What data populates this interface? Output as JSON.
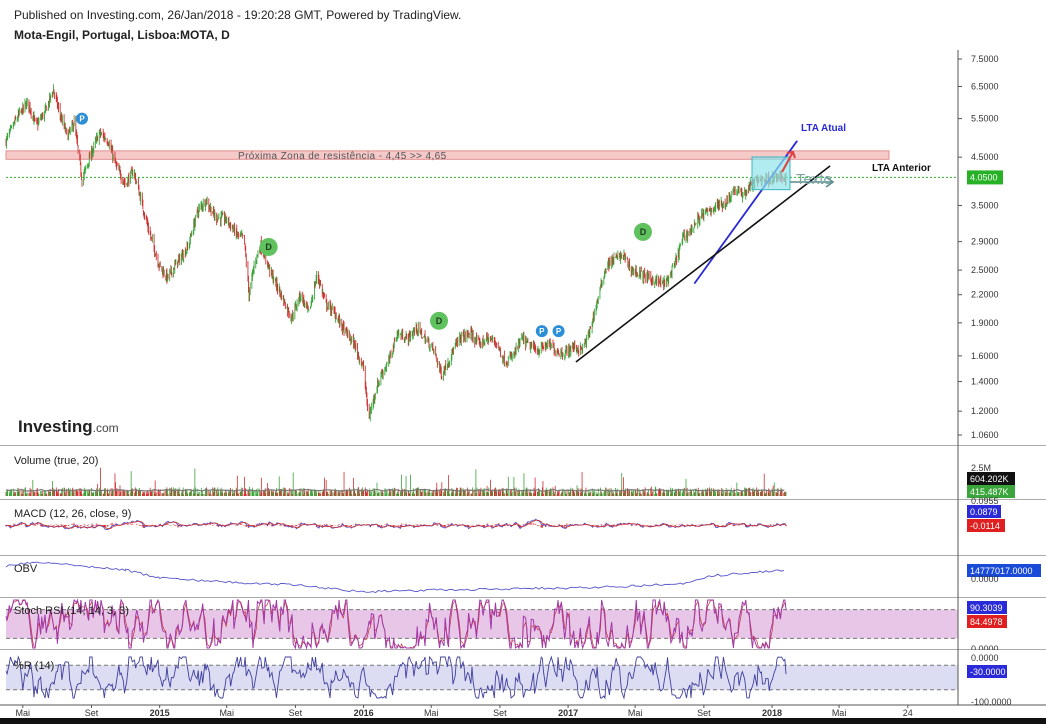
{
  "header": {
    "published": "Published on Investing.com, 26/Jan/2018 - 19:20:28 GMT, Powered by TradingView.",
    "symbol": "Mota-Engil, Portugal, Lisboa:MOTA, D"
  },
  "logo": {
    "brand": "Investing",
    "suffix": ".com"
  },
  "colors": {
    "up": "#3aa53a",
    "down": "#d03030",
    "resistance": "#f6c9c9",
    "price_line": "#27b127",
    "lta_atual": "#2a2ad8",
    "lta_anterior": "#111111",
    "macd": "#4a4ad0",
    "signal": "#cc3030",
    "obv": "#5555cc",
    "stoch_k": "#a23aa8",
    "stoch_d": "#cc3030",
    "stoch_band": "#e8c6e8",
    "wr": "#4040a0",
    "wr_band": "#dcdcf2",
    "marker_blue": "#2a8fd6",
    "marker_green": "#5fc25f"
  },
  "chart_data": [
    {
      "type": "candlestick",
      "name": "price",
      "y_scale": "log",
      "y_ticks": [
        "7.5000",
        "6.5000",
        "5.5000",
        "4.5000",
        "3.5000",
        "2.9000",
        "2.5000",
        "2.2000",
        "1.9000",
        "1.6000",
        "1.4000",
        "1.2000",
        "1.0600"
      ],
      "y_tick_values": [
        7.5,
        6.5,
        5.5,
        4.5,
        3.5,
        2.9,
        2.5,
        2.2,
        1.9,
        1.6,
        1.4,
        1.2,
        1.06
      ],
      "ylim": [
        1.0,
        8.0
      ],
      "last_price": "4.0500",
      "last_value": 4.05,
      "resistance_zone": {
        "label": "Próxima Zona de resistência - 4,45 >> 4,65",
        "from": 4.45,
        "to": 4.65
      },
      "trendlines": [
        {
          "label": "LTA Atual",
          "from": [
            "2017-08",
            2.33
          ],
          "to": [
            "2018-02",
            4.9
          ]
        },
        {
          "label": "LTA Anterior",
          "from": [
            "2017-01",
            1.55
          ],
          "to": [
            "2018-04",
            4.3
          ]
        }
      ],
      "annotation_text": "Texto",
      "markers": [
        {
          "label": "P",
          "date": "2014-08",
          "value": 5.5
        },
        {
          "label": "D",
          "date": "2015-07",
          "value": 2.82
        },
        {
          "label": "D",
          "date": "2016-05",
          "value": 1.92
        },
        {
          "label": "P",
          "date": "2016-11",
          "value": 1.82
        },
        {
          "label": "P",
          "date": "2016-12",
          "value": 1.82
        },
        {
          "label": "D",
          "date": "2017-05",
          "value": 3.05
        }
      ],
      "path_points": [
        [
          "2014-04-01",
          4.9
        ],
        [
          "2014-04-20",
          5.5
        ],
        [
          "2014-05-10",
          6.0
        ],
        [
          "2014-05-25",
          5.3
        ],
        [
          "2014-06-10",
          5.7
        ],
        [
          "2014-06-25",
          6.4
        ],
        [
          "2014-07-05",
          5.7
        ],
        [
          "2014-07-20",
          5.0
        ],
        [
          "2014-08-01",
          5.4
        ],
        [
          "2014-08-15",
          4.0
        ],
        [
          "2014-09-01",
          4.6
        ],
        [
          "2014-09-15",
          5.1
        ],
        [
          "2014-10-01",
          4.9
        ],
        [
          "2014-10-15",
          4.3
        ],
        [
          "2014-11-01",
          3.9
        ],
        [
          "2014-11-15",
          4.2
        ],
        [
          "2014-12-01",
          3.5
        ],
        [
          "2014-12-15",
          3.0
        ],
        [
          "2015-01-01",
          2.55
        ],
        [
          "2015-01-15",
          2.4
        ],
        [
          "2015-02-01",
          2.6
        ],
        [
          "2015-02-20",
          2.8
        ],
        [
          "2015-03-10",
          3.4
        ],
        [
          "2015-03-25",
          3.6
        ],
        [
          "2015-04-10",
          3.3
        ],
        [
          "2015-05-01",
          3.25
        ],
        [
          "2015-05-20",
          3.0
        ],
        [
          "2015-06-01",
          2.95
        ],
        [
          "2015-06-10",
          2.2
        ],
        [
          "2015-06-20",
          2.6
        ],
        [
          "2015-07-01",
          2.85
        ],
        [
          "2015-07-20",
          2.45
        ],
        [
          "2015-08-10",
          2.15
        ],
        [
          "2015-08-25",
          1.95
        ],
        [
          "2015-09-10",
          2.2
        ],
        [
          "2015-09-25",
          2.0
        ],
        [
          "2015-10-10",
          2.45
        ],
        [
          "2015-10-25",
          2.1
        ],
        [
          "2015-11-10",
          2.0
        ],
        [
          "2015-11-25",
          1.85
        ],
        [
          "2015-12-15",
          1.7
        ],
        [
          "2016-01-01",
          1.5
        ],
        [
          "2016-01-10",
          1.15
        ],
        [
          "2016-01-20",
          1.3
        ],
        [
          "2016-02-01",
          1.45
        ],
        [
          "2016-02-15",
          1.55
        ],
        [
          "2016-03-01",
          1.8
        ],
        [
          "2016-03-20",
          1.75
        ],
        [
          "2016-04-05",
          1.85
        ],
        [
          "2016-04-20",
          1.75
        ],
        [
          "2016-05-05",
          1.65
        ],
        [
          "2016-05-20",
          1.45
        ],
        [
          "2016-06-05",
          1.6
        ],
        [
          "2016-06-20",
          1.75
        ],
        [
          "2016-07-10",
          1.8
        ],
        [
          "2016-07-25",
          1.7
        ],
        [
          "2016-08-10",
          1.75
        ],
        [
          "2016-08-25",
          1.72
        ],
        [
          "2016-09-10",
          1.55
        ],
        [
          "2016-09-25",
          1.6
        ],
        [
          "2016-10-10",
          1.75
        ],
        [
          "2016-10-25",
          1.68
        ],
        [
          "2016-11-10",
          1.65
        ],
        [
          "2016-11-25",
          1.7
        ],
        [
          "2016-12-10",
          1.65
        ],
        [
          "2016-12-25",
          1.62
        ],
        [
          "2017-01-10",
          1.68
        ],
        [
          "2017-01-25",
          1.65
        ],
        [
          "2017-02-05",
          1.75
        ],
        [
          "2017-02-15",
          1.95
        ],
        [
          "2017-02-25",
          2.2
        ],
        [
          "2017-03-10",
          2.55
        ],
        [
          "2017-03-25",
          2.65
        ],
        [
          "2017-04-10",
          2.7
        ],
        [
          "2017-04-25",
          2.5
        ],
        [
          "2017-05-10",
          2.45
        ],
        [
          "2017-05-25",
          2.4
        ],
        [
          "2017-06-10",
          2.35
        ],
        [
          "2017-06-25",
          2.33
        ],
        [
          "2017-07-10",
          2.55
        ],
        [
          "2017-07-25",
          2.95
        ],
        [
          "2017-08-10",
          3.1
        ],
        [
          "2017-08-25",
          3.3
        ],
        [
          "2017-09-10",
          3.4
        ],
        [
          "2017-09-25",
          3.5
        ],
        [
          "2017-10-10",
          3.55
        ],
        [
          "2017-10-25",
          3.8
        ],
        [
          "2017-11-10",
          3.7
        ],
        [
          "2017-11-25",
          3.9
        ],
        [
          "2017-12-10",
          4.0
        ],
        [
          "2018-01-10",
          4.05
        ],
        [
          "2018-01-26",
          4.05
        ]
      ]
    },
    {
      "type": "bar",
      "name": "volume",
      "label": "Volume (true, 20)",
      "y_ticks": [
        "2.5M"
      ],
      "ylim": [
        0,
        3000000
      ],
      "last_values": [
        "604.202K",
        "415.487K"
      ]
    },
    {
      "type": "line",
      "name": "macd",
      "label": "MACD (12, 26, close, 9)",
      "last_values": [
        "0.0879",
        "-0.0114"
      ],
      "partial_tick": "0.0955",
      "ylim": [
        -0.4,
        0.3
      ]
    },
    {
      "type": "line",
      "name": "obv",
      "label": "OBV",
      "last_value": "14777017.0000",
      "y_ticks": [
        "0.0000"
      ]
    },
    {
      "type": "line",
      "name": "stoch_rsi",
      "label": "Stoch RSI (14, 14, 3, 3)",
      "last_values": [
        "90.3039",
        "84.4978"
      ],
      "y_ticks": [
        "0.0000"
      ],
      "ylim": [
        0,
        100
      ],
      "band": [
        20,
        80
      ]
    },
    {
      "type": "line",
      "name": "williams_r",
      "label": "%R (14)",
      "last_value": "-30.0000",
      "y_ticks": [
        "0.0000",
        "-100.0000"
      ],
      "ylim": [
        -100,
        0
      ],
      "band": [
        -80,
        -20
      ]
    }
  ],
  "x_axis": {
    "labels": [
      "Mai",
      "Set",
      "2015",
      "Mai",
      "Set",
      "2016",
      "Mai",
      "Set",
      "2017",
      "Mai",
      "Set",
      "2018",
      "Mai",
      "24"
    ],
    "dates": [
      "2014-05-01",
      "2014-09-01",
      "2015-01-01",
      "2015-05-01",
      "2015-09-01",
      "2016-01-01",
      "2016-05-01",
      "2016-09-01",
      "2017-01-01",
      "2017-05-01",
      "2017-09-01",
      "2018-01-01",
      "2018-05-01",
      "2018-09-01"
    ]
  }
}
